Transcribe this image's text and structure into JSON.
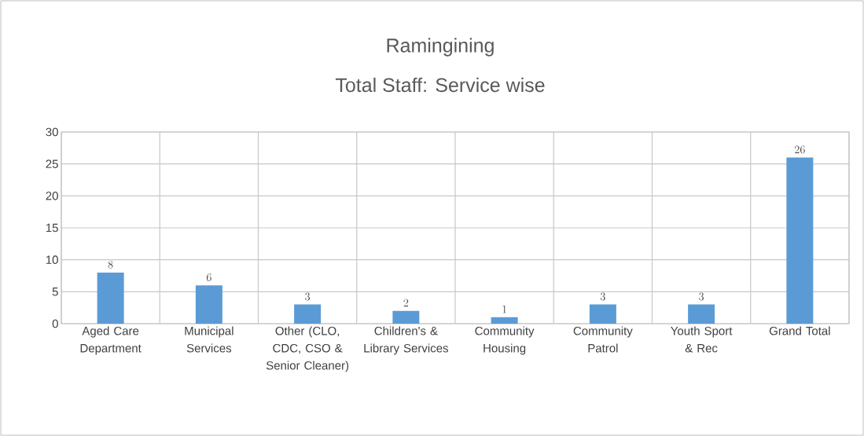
{
  "chart_data": {
    "type": "bar",
    "title": "Ramingining",
    "subtitle": "Total Staff: Service wise",
    "categories": [
      "Aged Care Department",
      "Municipal Services",
      "Other (CLO, CDC, CSO & Senior Cleaner)",
      "Children's & Library Services",
      "Community Housing",
      "Community Patrol",
      "Youth Sport & Rec",
      "Grand Total"
    ],
    "values": [
      8,
      6,
      3,
      2,
      1,
      3,
      3,
      26
    ],
    "color": "#5b9bd5",
    "ylim": [
      0,
      30
    ],
    "yticks": [
      0,
      5,
      10,
      15,
      20,
      25,
      30
    ],
    "grid": true,
    "data_labels": true
  }
}
